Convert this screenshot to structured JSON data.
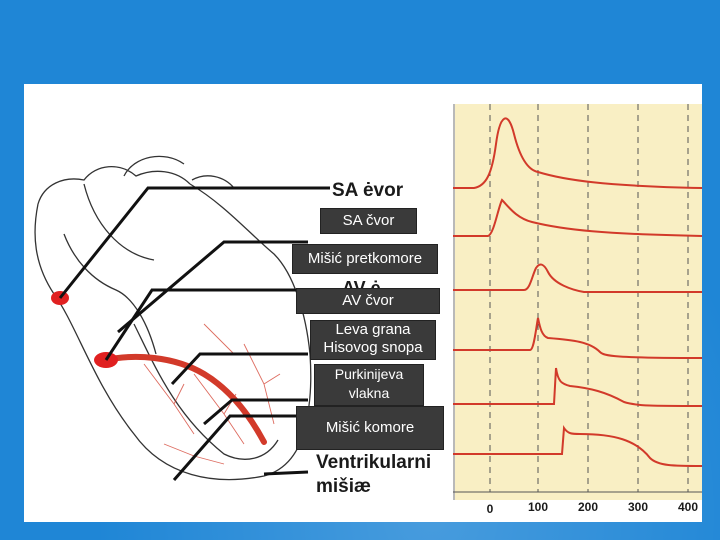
{
  "overlay_labels": {
    "sa": "SA  čvor",
    "atrial_muscle": "Mišić pretkomore",
    "av": "AV  čvor",
    "left_bundle_line1": "Leva grana",
    "left_bundle_line2": "Hisovog snopa",
    "purkinje_line1": "Purkinijeva",
    "purkinje_line2": "vlakna",
    "ventricle_muscle": "Mišić komore"
  },
  "original_labels": {
    "sa": "SA ėvor",
    "av": "AV ė",
    "ventricular_line1": "Ventrikularni",
    "ventricular_line2": "mišiæ"
  },
  "time_axis": {
    "ticks": [
      "0",
      "100",
      "200",
      "300",
      "400"
    ]
  },
  "colors": {
    "background": "#1f86d6",
    "trace": "#d23a2a",
    "node": "#e02020",
    "label_box": "#3a3a3a",
    "chart_panel": "#f9efc4"
  }
}
